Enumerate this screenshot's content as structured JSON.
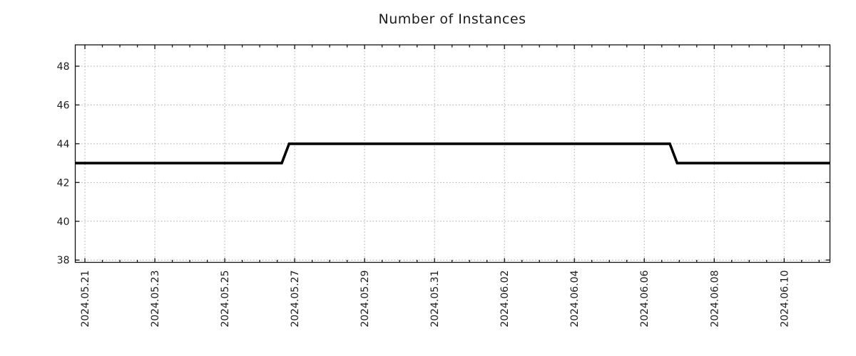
{
  "page": {
    "background_color": "#ffffff"
  },
  "chart_data": {
    "type": "line",
    "subtype": "step",
    "title": "Number of Instances",
    "xlabel": "",
    "ylabel": "",
    "legend": "none",
    "grid": {
      "visible": true,
      "style": "dotted",
      "color": "#a8a8a8"
    },
    "frame_color": "#111111",
    "x_axis": {
      "unit": "date",
      "tick_labels": [
        "2024.05.21",
        "2024.05.23",
        "2024.05.25",
        "2024.05.27",
        "2024.05.29",
        "2024.05.31",
        "2024.06.02",
        "2024.06.04",
        "2024.06.06",
        "2024.06.08",
        "2024.06.10"
      ],
      "tick_positions_days_from_2024_05_21": [
        0,
        2,
        4,
        6,
        8,
        10,
        12,
        14,
        16,
        18,
        20
      ],
      "minor_tick_interval_days": 0.5,
      "lim_days_from_2024_05_21": [
        -0.276,
        21.31
      ],
      "label_rotation_deg": 90,
      "tick_direction": "in"
    },
    "y_axis": {
      "tick_labels": [
        "38",
        "40",
        "42",
        "44",
        "46",
        "48"
      ],
      "tick_values": [
        38,
        40,
        42,
        44,
        46,
        48
      ],
      "lim": [
        37.88,
        49.1
      ],
      "tick_direction": "in"
    },
    "series": [
      {
        "name": "Number of Instances",
        "color": "#000000",
        "line_width": 3.6,
        "points": [
          {
            "d": -0.276,
            "v": 43
          },
          {
            "d": 5.63,
            "v": 43
          },
          {
            "d": 5.84,
            "v": 44
          },
          {
            "d": 16.73,
            "v": 44
          },
          {
            "d": 16.94,
            "v": 43
          },
          {
            "d": 21.31,
            "v": 43
          }
        ],
        "value_summary": [
          {
            "value": 43,
            "from": "2024.05.21 (chart start)",
            "to": "late 2024.05.26"
          },
          {
            "value": 44,
            "from": "late 2024.05.26",
            "to": "late 2024.06.06"
          },
          {
            "value": 43,
            "from": "~2024.06.07",
            "to": "chart end (~2024.06.11)"
          }
        ]
      }
    ]
  }
}
